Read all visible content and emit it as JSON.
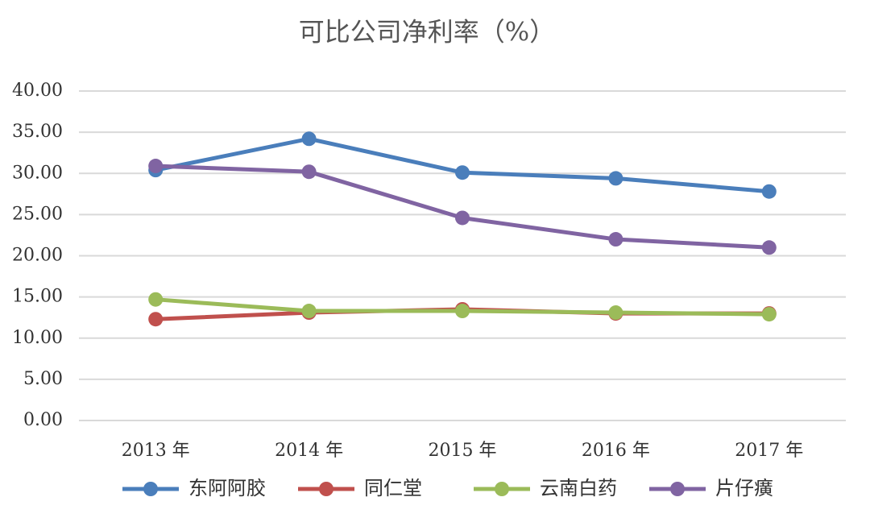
{
  "chart_data": {
    "type": "line",
    "title": "可比公司净利率（%）",
    "categories": [
      "2013 年",
      "2014 年",
      "2015 年",
      "2016 年",
      "2017 年"
    ],
    "series": [
      {
        "name": "东阿阿胶",
        "color": "#4a7ebb",
        "values": [
          30.4,
          34.2,
          30.1,
          29.4,
          27.8
        ]
      },
      {
        "name": "同仁堂",
        "color": "#c0504d",
        "values": [
          12.3,
          13.1,
          13.5,
          13.0,
          13.0
        ]
      },
      {
        "name": "云南白药",
        "color": "#9bbb59",
        "values": [
          14.7,
          13.3,
          13.3,
          13.1,
          12.9
        ]
      },
      {
        "name": "片仔癀",
        "color": "#8064a2",
        "values": [
          30.9,
          30.2,
          24.6,
          22.0,
          21.0
        ]
      }
    ],
    "ylim": [
      0,
      40
    ],
    "yticks": [
      {
        "value": 0,
        "label": "0.00"
      },
      {
        "value": 5,
        "label": "5.00"
      },
      {
        "value": 10,
        "label": "10.00"
      },
      {
        "value": 15,
        "label": "15.00"
      },
      {
        "value": 20,
        "label": "20.00"
      },
      {
        "value": 25,
        "label": "25.00"
      },
      {
        "value": 30,
        "label": "30.00"
      },
      {
        "value": 35,
        "label": "35.00"
      },
      {
        "value": 40,
        "label": "40.00"
      }
    ],
    "grid": true
  }
}
